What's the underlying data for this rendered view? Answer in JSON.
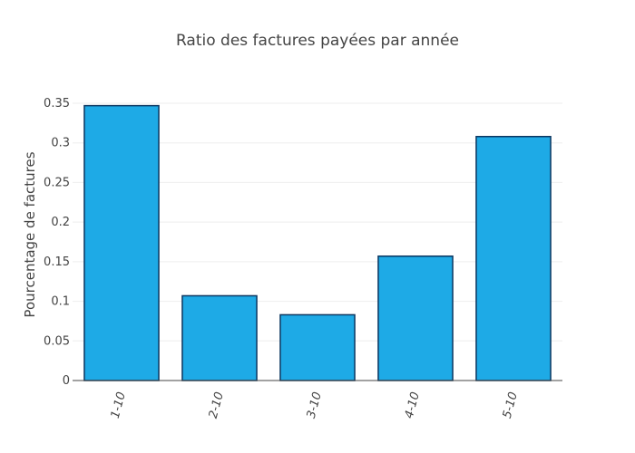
{
  "chart_data": {
    "type": "bar",
    "title": "Ratio des factures payées par année",
    "xlabel": "",
    "ylabel": "Pourcentage de factures",
    "categories": [
      "1-10",
      "2-10",
      "3-10",
      "4-10",
      "5-10"
    ],
    "values": [
      0.347,
      0.107,
      0.083,
      0.157,
      0.308
    ],
    "ylim": [
      0,
      0.35
    ],
    "yticks": [
      0,
      0.05,
      0.1,
      0.15,
      0.2,
      0.25,
      0.3,
      0.35
    ],
    "ytick_labels": [
      "0",
      "0.05",
      "0.1",
      "0.15",
      "0.2",
      "0.25",
      "0.3",
      "0.35"
    ],
    "grid": true,
    "bar_color": "#1eaae6",
    "bar_outline_color": "#0b3660"
  }
}
